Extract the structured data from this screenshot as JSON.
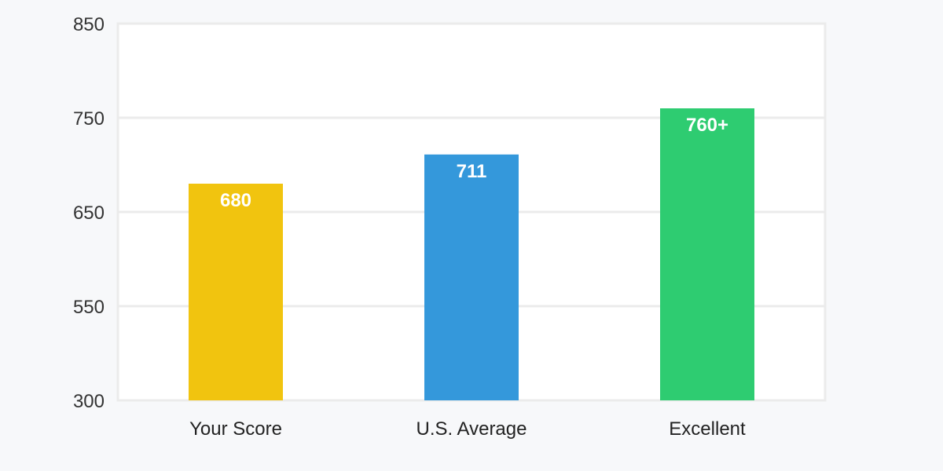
{
  "chart_data": {
    "type": "bar",
    "title": "",
    "xlabel": "",
    "ylabel": "",
    "categories": [
      "Your Score",
      "U.S. Average",
      "Excellent"
    ],
    "values": [
      680,
      711,
      760
    ],
    "data_labels": [
      "680",
      "711",
      "760+"
    ],
    "colors": [
      "#f1c40f",
      "#3498db",
      "#2ecc71"
    ],
    "yticks": [
      300,
      550,
      650,
      750,
      850
    ],
    "ytick_labels": [
      "300",
      "550",
      "650",
      "750",
      "850"
    ],
    "ylim": [
      300,
      850
    ],
    "grid": true,
    "legend": "none"
  }
}
